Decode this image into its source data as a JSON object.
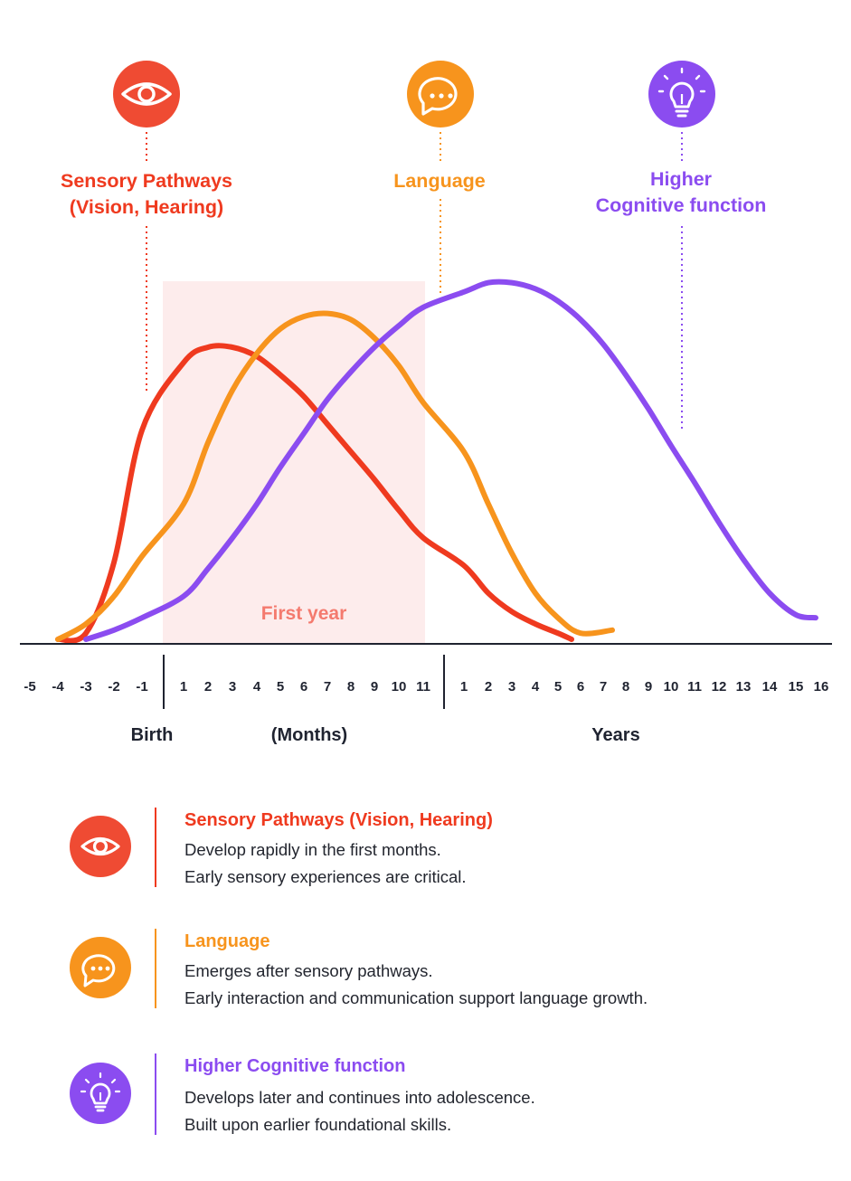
{
  "colors": {
    "sensory": "#ef3a1f",
    "language": "#f7941d",
    "cognitive": "#8b4cf0",
    "shade": "#fdecec",
    "axis": "#1f2330"
  },
  "header_labels": {
    "sensory": [
      "Sensory Pathways",
      "(Vision, Hearing)"
    ],
    "language": [
      "Language"
    ],
    "cognitive": [
      "Higher",
      "Cognitive function"
    ]
  },
  "icons": {
    "sensory": "eye-icon",
    "language": "speech-bubble-icon",
    "cognitive": "lightbulb-icon"
  },
  "chart_data": {
    "type": "line",
    "title": "",
    "xlabel": "",
    "ylabel": "",
    "shaded_region": {
      "label": "First year",
      "x_range": [
        "1",
        "11"
      ]
    },
    "axis_groups": [
      {
        "label": "Birth",
        "ticks": [
          "-5",
          "-4",
          "-3",
          "-2",
          "-1"
        ]
      },
      {
        "label": "(Months)",
        "ticks": [
          "1",
          "2",
          "3",
          "4",
          "5",
          "6",
          "7",
          "8",
          "9",
          "10",
          "11"
        ]
      },
      {
        "label": "Years",
        "ticks": [
          "1",
          "2",
          "3",
          "4",
          "5",
          "6",
          "7",
          "8",
          "9",
          "10",
          "11",
          "12",
          "13",
          "14",
          "15",
          "16"
        ]
      }
    ],
    "grid": false,
    "legend": "below",
    "y_scale": "relative 0-1 (unlabeled)",
    "series": [
      {
        "name": "Sensory Pathways (Vision, Hearing)",
        "color": "#ef3a1f",
        "x": [
          "-4",
          "-3",
          "-2",
          "-1",
          "1",
          "2",
          "3",
          "4",
          "5",
          "6",
          "7",
          "8",
          "9",
          "10",
          "11",
          "1y",
          "2y",
          "3y",
          "4y",
          "5y",
          "6y"
        ],
        "y": [
          0.0,
          0.02,
          0.25,
          0.68,
          0.9,
          0.95,
          0.95,
          0.92,
          0.86,
          0.79,
          0.7,
          0.61,
          0.52,
          0.42,
          0.33,
          0.24,
          0.15,
          0.09,
          0.05,
          0.02,
          0.0
        ]
      },
      {
        "name": "Language",
        "color": "#f7941d",
        "x": [
          "-4",
          "-3",
          "-2",
          "-1",
          "1",
          "2",
          "3",
          "4",
          "5",
          "6",
          "7",
          "8",
          "9",
          "10",
          "11",
          "1y",
          "2y",
          "3y",
          "4y",
          "5y",
          "6y",
          "7y"
        ],
        "y": [
          0.0,
          0.05,
          0.14,
          0.27,
          0.44,
          0.64,
          0.81,
          0.93,
          1.01,
          1.05,
          1.06,
          1.04,
          0.98,
          0.89,
          0.77,
          0.61,
          0.44,
          0.28,
          0.15,
          0.07,
          0.02,
          0.03
        ]
      },
      {
        "name": "Higher Cognitive function",
        "color": "#8b4cf0",
        "x": [
          "-3",
          "-2",
          "-1",
          "1",
          "2",
          "3",
          "4",
          "5",
          "6",
          "7",
          "8",
          "9",
          "10",
          "11",
          "1y",
          "2y",
          "3y",
          "4y",
          "5y",
          "6y",
          "7y",
          "8y",
          "9y",
          "10y",
          "11y",
          "12y",
          "13y",
          "14y",
          "15y",
          "16y"
        ],
        "y": [
          0.0,
          0.03,
          0.07,
          0.14,
          0.23,
          0.33,
          0.44,
          0.56,
          0.67,
          0.78,
          0.87,
          0.95,
          1.02,
          1.08,
          1.13,
          1.16,
          1.16,
          1.14,
          1.1,
          1.04,
          0.96,
          0.86,
          0.75,
          0.63,
          0.51,
          0.38,
          0.26,
          0.15,
          0.08,
          0.07
        ]
      }
    ]
  },
  "legend_items": [
    {
      "title": "Sensory Pathways (Vision, Hearing)",
      "lines": [
        "Develop rapidly in the first months.",
        "Early sensory experiences are critical."
      ]
    },
    {
      "title": "Language",
      "lines": [
        "Emerges after sensory pathways.",
        "Early interaction and communication support language growth."
      ]
    },
    {
      "title": "Higher Cognitive function",
      "lines": [
        "Develops later and continues into adolescence.",
        "Built upon earlier foundational skills."
      ]
    }
  ]
}
